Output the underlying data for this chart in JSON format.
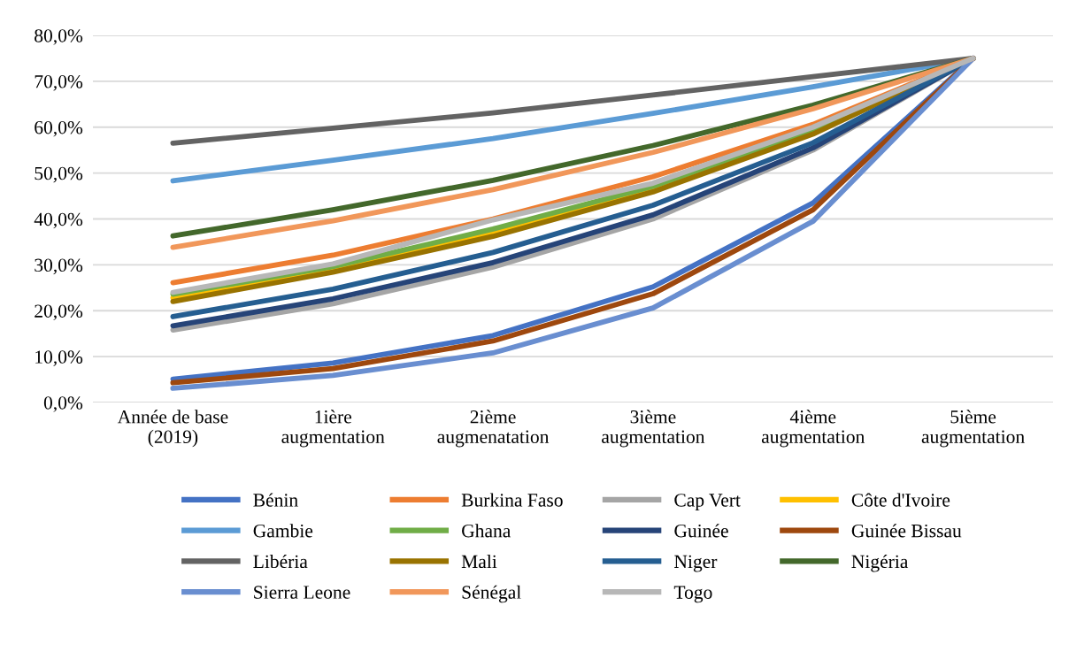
{
  "chart_data": {
    "type": "line",
    "categories": [
      "Année de base\n(2019)",
      "1ière\naugmentation",
      "2ième\naugmenatation",
      "3ième\naugmentation",
      "4ième\naugmentation",
      "5ième\naugmentation"
    ],
    "ylim": [
      0,
      80
    ],
    "yticks": [
      {
        "value": 0,
        "label": "0,0%"
      },
      {
        "value": 10,
        "label": "10,0%"
      },
      {
        "value": 20,
        "label": "20,0%"
      },
      {
        "value": 30,
        "label": "30,0%"
      },
      {
        "value": 40,
        "label": "40,0%"
      },
      {
        "value": 50,
        "label": "50,0%"
      },
      {
        "value": 60,
        "label": "60,0%"
      },
      {
        "value": 70,
        "label": "70,0%"
      },
      {
        "value": 80,
        "label": "80,0%"
      }
    ],
    "grid": "y",
    "legend": "bottom",
    "marker": "none",
    "line_style": "solid",
    "series": [
      {
        "name": "Bénin",
        "color": "#4472c4",
        "values": [
          5.1,
          8.6,
          14.6,
          25.2,
          43.5,
          75
        ]
      },
      {
        "name": "Burkina Faso",
        "color": "#ed7d31",
        "values": [
          26.1,
          32.1,
          40.0,
          49.2,
          60.6,
          75
        ]
      },
      {
        "name": "Cap Vert",
        "color": "#a5a5a5",
        "values": [
          15.8,
          21.5,
          29.5,
          40.0,
          55.0,
          75
        ]
      },
      {
        "name": "Côte d'Ivoire",
        "color": "#ffc000",
        "values": [
          22.8,
          29.0,
          37.0,
          46.5,
          59.0,
          75
        ]
      },
      {
        "name": "Gambie",
        "color": "#5b9bd5",
        "values": [
          48.3,
          52.8,
          57.5,
          63.0,
          68.8,
          75
        ]
      },
      {
        "name": "Ghana",
        "color": "#70ad47",
        "values": [
          23.6,
          29.6,
          37.8,
          47.1,
          59.5,
          75
        ]
      },
      {
        "name": "Guinée",
        "color": "#264478",
        "values": [
          16.7,
          22.6,
          30.5,
          40.9,
          55.5,
          75
        ]
      },
      {
        "name": "Guinée Bissau",
        "color": "#9e480e",
        "values": [
          4.3,
          7.4,
          13.4,
          23.7,
          42.0,
          75
        ]
      },
      {
        "name": "Libéria",
        "color": "#636363",
        "values": [
          56.5,
          59.8,
          63.1,
          67.0,
          71.0,
          75
        ]
      },
      {
        "name": "Mali",
        "color": "#997300",
        "values": [
          22.0,
          28.4,
          36.2,
          45.9,
          58.5,
          75
        ]
      },
      {
        "name": "Niger",
        "color": "#255e91",
        "values": [
          18.7,
          24.7,
          32.7,
          43.0,
          56.6,
          75
        ]
      },
      {
        "name": "Nigéria",
        "color": "#43682b",
        "values": [
          36.3,
          42.0,
          48.4,
          56.0,
          64.8,
          75
        ]
      },
      {
        "name": "Sierra Leone",
        "color": "#698ed0",
        "values": [
          3.1,
          5.9,
          10.8,
          20.6,
          39.5,
          75
        ]
      },
      {
        "name": "Sénégal",
        "color": "#f1975a",
        "values": [
          33.8,
          39.6,
          46.4,
          54.5,
          64.0,
          75
        ]
      },
      {
        "name": "Togo",
        "color": "#b7b7b7",
        "values": [
          24.0,
          30.2,
          39.8,
          47.8,
          60.0,
          75
        ]
      }
    ]
  }
}
